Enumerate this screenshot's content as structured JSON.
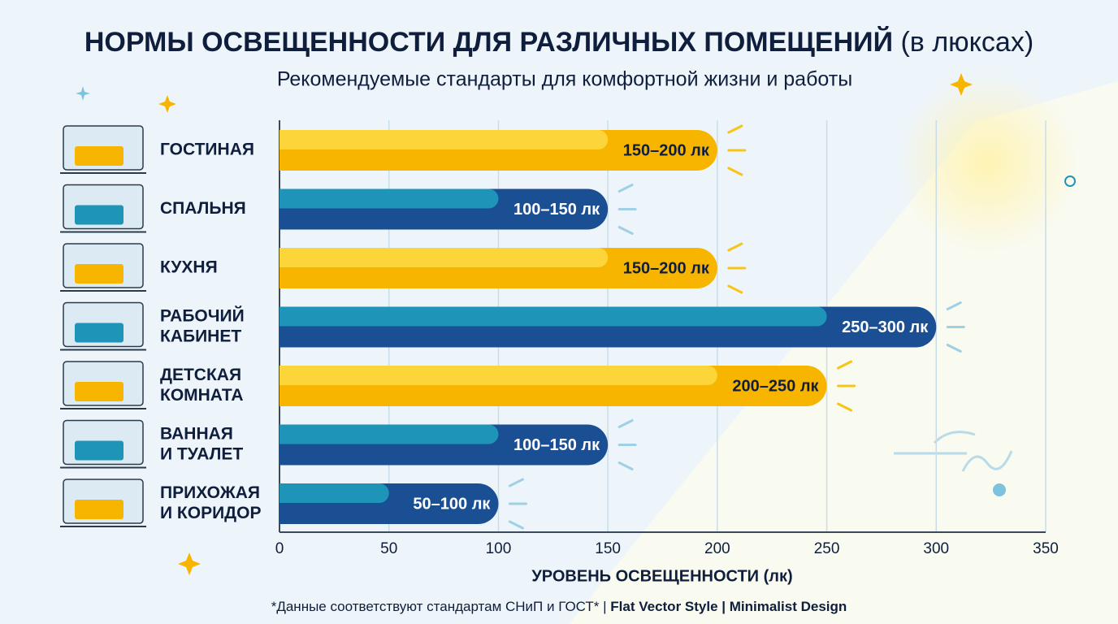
{
  "chart_data": {
    "type": "range-bar",
    "title": "НОРМЫ ОСВЕЩЕННОСТИ ДЛЯ РАЗЛИЧНЫХ ПОМЕЩЕНИЙ",
    "title_unit": "(в люксах)",
    "subtitle": "Рекомендуемые стандарты для комфортной жизни и работы",
    "x_label": "УРОВЕНЬ ОСВЕЩЕННОСТИ (лк)",
    "footnote": [
      "*Данные соответствуют стандартам СНиП и ГОСТ* | ",
      "Flat Vector Style",
      " | Minimalist Design"
    ],
    "categories": [
      [
        "ГОСТИНАЯ"
      ],
      [
        "СПАЛЬНЯ"
      ],
      [
        "КУХНЯ"
      ],
      [
        "РАБОЧИЙ",
        "КАБИНЕТ"
      ],
      [
        "ДЕТСКАЯ",
        "КОМНАТА"
      ],
      [
        "ВАННАЯ",
        "И ТУАЛЕТ"
      ],
      [
        "ПРИХОЖАЯ",
        "И КОРИДОР"
      ]
    ],
    "ranges": [
      [
        150,
        200
      ],
      [
        100,
        150
      ],
      [
        150,
        200
      ],
      [
        250,
        300
      ],
      [
        200,
        250
      ],
      [
        100,
        150
      ],
      [
        50,
        100
      ]
    ],
    "value_labels": [
      "150–200 лк",
      "100–150 лк",
      "150–200 лк",
      "250–300 лк",
      "200–250 лк",
      "100–150 лк",
      "50–100 лк"
    ],
    "colors": [
      [
        "#fcd53a",
        "#f7b500"
      ],
      [
        "#1e95b8",
        "#1b4f93"
      ],
      [
        "#fcd53a",
        "#f7b500"
      ],
      [
        "#1e95b8",
        "#1b4f93"
      ],
      [
        "#fcd53a",
        "#f7b500"
      ],
      [
        "#1e95b8",
        "#1b4f93"
      ],
      [
        "#1e95b8",
        "#1b4f93"
      ]
    ],
    "xlim": [
      0,
      350
    ],
    "xticks": [
      0,
      50,
      100,
      150,
      200,
      250,
      300,
      350
    ],
    "grid": true
  }
}
